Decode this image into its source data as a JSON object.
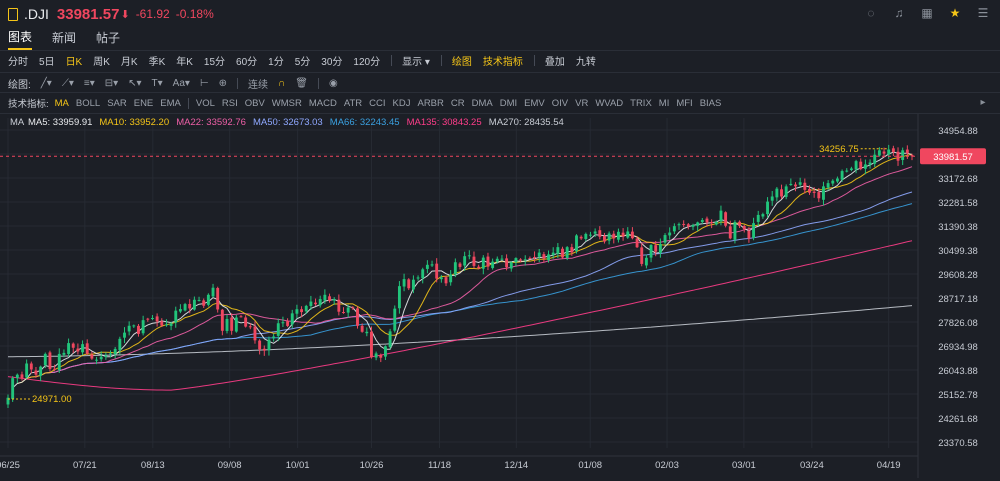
{
  "header": {
    "symbol": ".DJI",
    "price": "33981.57",
    "arrow": "⬇",
    "change": "-61.92",
    "change_pct": "-0.18%",
    "icons": [
      "settings-icon",
      "bell-icon",
      "grid-icon",
      "star-icon",
      "menu-icon"
    ]
  },
  "tabs": [
    {
      "label": "图表",
      "active": true
    },
    {
      "label": "新闻",
      "active": false
    },
    {
      "label": "帖子",
      "active": false
    }
  ],
  "periods": {
    "items": [
      "分时",
      "5日",
      "日K",
      "周K",
      "月K",
      "季K",
      "年K",
      "15分",
      "60分",
      "1分",
      "5分",
      "30分",
      "120分"
    ],
    "active": "日K",
    "display_label": "显示",
    "draw_label": "绘图",
    "tech_label": "技术指标",
    "overlay_label": "叠加",
    "nine_label": "九转"
  },
  "drawbar": {
    "label": "绘图:",
    "connect_label": "连续"
  },
  "indicators": {
    "label": "技术指标:",
    "items": [
      "MA",
      "BOLL",
      "SAR",
      "ENE",
      "EMA",
      "VOL",
      "RSI",
      "OBV",
      "WMSR",
      "MACD",
      "ATR",
      "CCI",
      "KDJ",
      "ARBR",
      "CR",
      "DMA",
      "DMI",
      "EMV",
      "OIV",
      "VR",
      "WVAD",
      "TRIX",
      "MI",
      "MFI",
      "BIAS"
    ],
    "active": "MA"
  },
  "colors": {
    "up": "#21c47b",
    "down": "#f0475f",
    "ma5": "#e8eaed",
    "ma10": "#f5c518",
    "ma22": "#ef5fa7",
    "ma50": "#8fa8ff",
    "ma66": "#3aa0e0",
    "ma135": "#ff3d8a",
    "ma270": "#c8ccd4"
  },
  "chart_data": {
    "type": "candlestick",
    "legend": {
      "prefix": "MA",
      "items": [
        {
          "name": "MA5",
          "value": "33959.91",
          "color_key": "ma5"
        },
        {
          "name": "MA10",
          "value": "33952.20",
          "color_key": "ma10"
        },
        {
          "name": "MA22",
          "value": "33592.76",
          "color_key": "ma22"
        },
        {
          "name": "MA50",
          "value": "32673.03",
          "color_key": "ma50"
        },
        {
          "name": "MA66",
          "value": "32243.45",
          "color_key": "ma66"
        },
        {
          "name": "MA135",
          "value": "30843.25",
          "color_key": "ma135"
        },
        {
          "name": "MA270",
          "value": "28435.54",
          "color_key": "ma270"
        }
      ]
    },
    "y_ticks": [
      34954.88,
      34063.98,
      33172.68,
      32281.58,
      31390.38,
      30499.38,
      29608.28,
      28717.18,
      27826.08,
      26934.98,
      26043.88,
      25152.78,
      24261.68,
      23370.58
    ],
    "ylim": [
      23150,
      35400
    ],
    "x_ticks": [
      {
        "label": "06/25",
        "date": "2020-06-25"
      },
      {
        "label": "07/21",
        "date": "2020-07-21"
      },
      {
        "label": "08/13",
        "date": "2020-08-13"
      },
      {
        "label": "09/08",
        "date": "2020-09-08"
      },
      {
        "label": "10/01",
        "date": "2020-10-01"
      },
      {
        "label": "10/26",
        "date": "2020-10-26"
      },
      {
        "label": "11/18",
        "date": "2020-11-18"
      },
      {
        "label": "12/14",
        "date": "2020-12-14"
      },
      {
        "label": "01/08",
        "date": "2021-01-08"
      },
      {
        "label": "02/03",
        "date": "2021-02-03"
      },
      {
        "label": "03/01",
        "date": "2021-03-01"
      },
      {
        "label": "03/24",
        "date": "2021-03-24"
      },
      {
        "label": "04/19",
        "date": "2021-04-19"
      }
    ],
    "last_price": "33981.57",
    "high_label": "34256.75",
    "low_label": "24971.00",
    "close_series": [
      25016,
      25745,
      25872,
      25734,
      26287,
      26067,
      25871,
      26170,
      26643,
      26086,
      26085,
      26642,
      26680,
      27044,
      26871,
      26734,
      27005,
      26653,
      26470,
      26428,
      26539,
      26584,
      26664,
      26828,
      27202,
      27433,
      27687,
      27701,
      27386,
      27896,
      27931,
      27976,
      27844,
      27692,
      27739,
      27777,
      28248,
      28309,
      28492,
      28331,
      28654,
      28646,
      28430,
      28837,
      29100,
      28293,
      27501,
      27940,
      27500,
      27995,
      28033,
      27657,
      27657,
      27147,
      26815,
      26763,
      27174,
      27288,
      27781,
      27817,
      27682,
      28148,
      28303,
      28195,
      28425,
      28587,
      28487,
      28680,
      28837,
      28606,
      28679,
      28210,
      28195,
      28364,
      28336,
      27685,
      27464,
      27463,
      26519,
      26660,
      26501,
      26925,
      27480,
      28323,
      29158,
      29420,
      29080,
      29398,
      29479,
      29783,
      29950,
      29969,
      29438,
      29483,
      29263,
      29591,
      30046,
      29872,
      30271,
      30303,
      29910,
      29824,
      30218,
      29883,
      30069,
      30174,
      30179,
      29862,
      30046,
      30200,
      30130,
      30155,
      30199,
      30216,
      30404,
      30179,
      30336,
      30403,
      30606,
      30223,
      30606,
      30409,
      31041,
      30929,
      31097,
      31068,
      31188,
      30991,
      30814,
      31112,
      30930,
      31176,
      30997,
      31188,
      30937,
      30603,
      29983,
      30212,
      30687,
      30438,
      30723,
      31055,
      31148,
      31385,
      31458,
      31438,
      31375,
      31430,
      31523,
      31613,
      31522,
      31494,
      31537,
      31961,
      31402,
      30932,
      31536,
      31392,
      31270,
      30924,
      31496,
      31802,
      31832,
      32297,
      32486,
      32778,
      32485,
      32861,
      32953,
      32862,
      33015,
      32732,
      32628,
      32619,
      32420,
      32862,
      32982,
      33072,
      33153,
      33430,
      33447,
      33527,
      33800,
      33504,
      33677,
      33746,
      34036,
      34201,
      34078,
      34230,
      34137,
      33815,
      34201,
      34084,
      33981
    ]
  }
}
